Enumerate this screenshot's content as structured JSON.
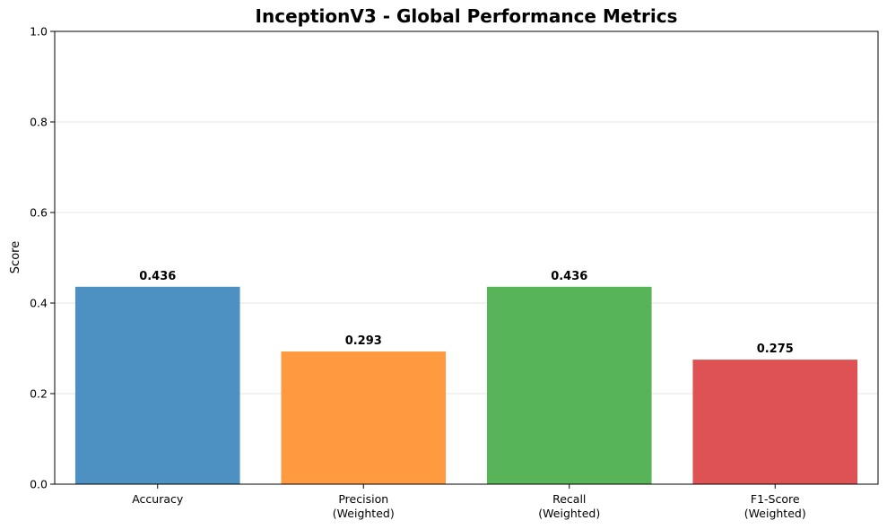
{
  "chart_data": {
    "type": "bar",
    "title": "InceptionV3 - Global Performance Metrics",
    "xlabel": "",
    "ylabel": "Score",
    "ylim": [
      0,
      1.0
    ],
    "yticks": [
      "0.0",
      "0.2",
      "0.4",
      "0.6",
      "0.8",
      "1.0"
    ],
    "grid": true,
    "categories": [
      [
        "Accuracy"
      ],
      [
        "Precision",
        "(Weighted)"
      ],
      [
        "Recall",
        "(Weighted)"
      ],
      [
        "F1-Score",
        "(Weighted)"
      ]
    ],
    "values": [
      0.436,
      0.293,
      0.436,
      0.275
    ],
    "value_labels": [
      "0.436",
      "0.293",
      "0.436",
      "0.275"
    ],
    "colors": [
      "#4c91c2",
      "#ff9a40",
      "#58b458",
      "#de5253"
    ]
  }
}
